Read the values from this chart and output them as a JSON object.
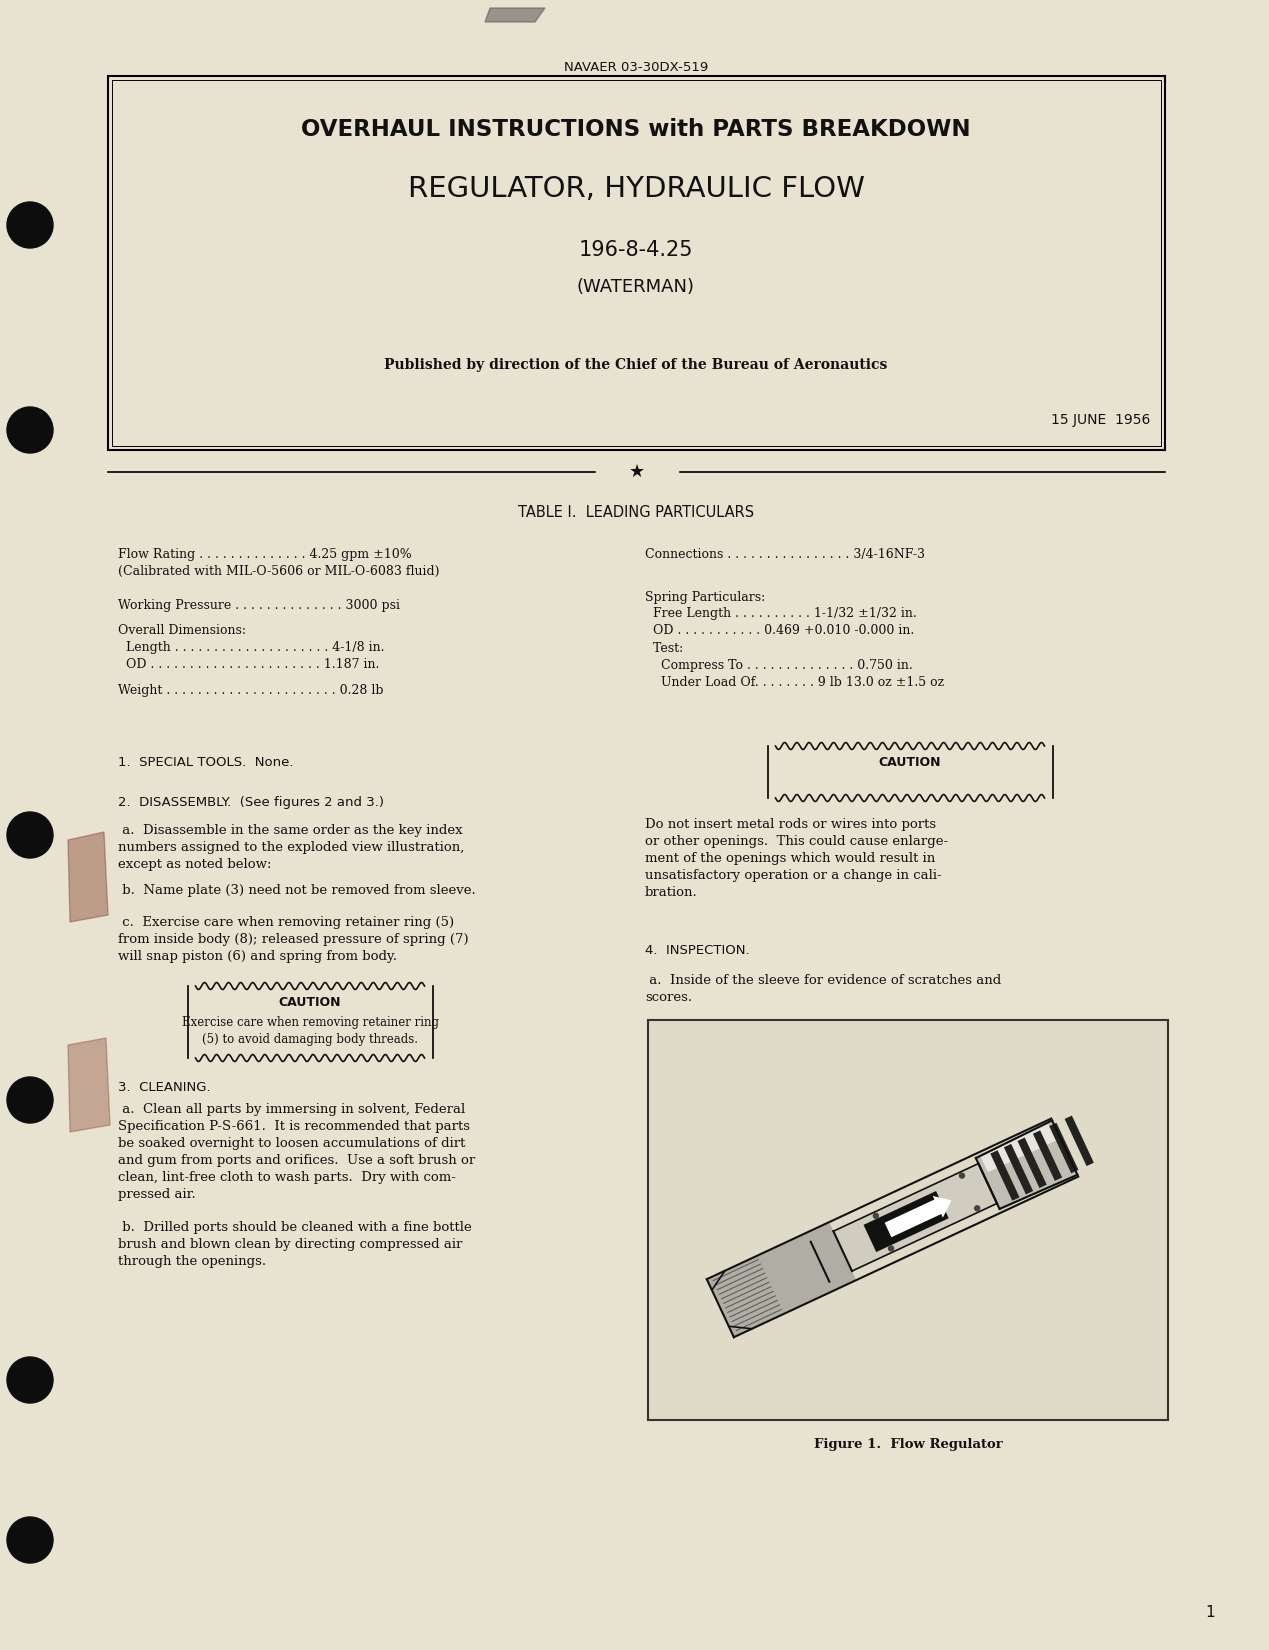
{
  "bg_color": "#e8e2d0",
  "text_color": "#111111",
  "header_text": "NAVAER 03-30DX-519",
  "title_line1": "OVERHAUL INSTRUCTIONS with PARTS BREAKDOWN",
  "title_line2": "REGULATOR, HYDRAULIC FLOW",
  "title_line3": "196-8-4.25",
  "title_line4": "(WATERMAN)",
  "subtitle": "Published by direction of the Chief of the Bureau of Aeronautics",
  "date": "15 JUNE  1956",
  "table_title": "TABLE I.  LEADING PARTICULARS",
  "lc1": "Flow Rating . . . . . . . . . . . . . . 4.25 gpm ±10%",
  "lc1b": "(Calibrated with MIL-O-5606 or MIL-O-6083 fluid)",
  "lc2": "Working Pressure . . . . . . . . . . . . . . 3000 psi",
  "lc3": "Overall Dimensions:",
  "lc4": "  Length . . . . . . . . . . . . . . . . . . . . 4-1/8 in.",
  "lc5": "  OD . . . . . . . . . . . . . . . . . . . . . . 1.187 in.",
  "lc6": "Weight . . . . . . . . . . . . . . . . . . . . . . 0.28 lb",
  "rc1": "Connections . . . . . . . . . . . . . . . . 3/4-16NF-3",
  "rc2": "Spring Particulars:",
  "rc3": "  Free Length . . . . . . . . . . 1-1/32 ±1/32 in.",
  "rc4": "  OD . . . . . . . . . . . 0.469 +0.010 -0.000 in.",
  "rc5": "  Test:",
  "rc6": "    Compress To . . . . . . . . . . . . . . 0.750 in.",
  "rc7": "    Under Load Of. . . . . . . . 9 lb 13.0 oz ±1.5 oz",
  "s1": "1.  SPECIAL TOOLS.  None.",
  "s2": "2.  DISASSEMBLY.  (See figures 2 and 3.)",
  "s2a": " a.  Disassemble in the same order as the key index\nnumbers assigned to the exploded view illustration,\nexcept as noted below:",
  "s2b": " b.  Name plate (3) need not be removed from sleeve.",
  "s2c": " c.  Exercise care when removing retainer ring (5)\nfrom inside body (8); released pressure of spring (7)\nwill snap piston (6) and spring from body.",
  "caution1": "Exercise care when removing retainer ring\n(5) to avoid damaging body threads.",
  "s3": "3.  CLEANING.",
  "s3a": " a.  Clean all parts by immersing in solvent, Federal\nSpecification P-S-661.  It is recommended that parts\nbe soaked overnight to loosen accumulations of dirt\nand gum from ports and orifices.  Use a soft brush or\nclean, lint-free cloth to wash parts.  Dry with com-\npressed air.",
  "s3b": " b.  Drilled ports should be cleaned with a fine bottle\nbrush and blown clean by directing compressed air\nthrough the openings.",
  "caution2": "Do not insert metal rods or wires into ports\nor other openings.  This could cause enlarge-\nment of the openings which would result in\nunsatisfactory operation or a change in cali-\nbration.",
  "s4": "4.  INSPECTION.",
  "s4a": " a.  Inside of the sleeve for evidence of scratches and\nscores.",
  "fig_caption": "Figure 1.  Flow Regulator",
  "page_num": "1"
}
